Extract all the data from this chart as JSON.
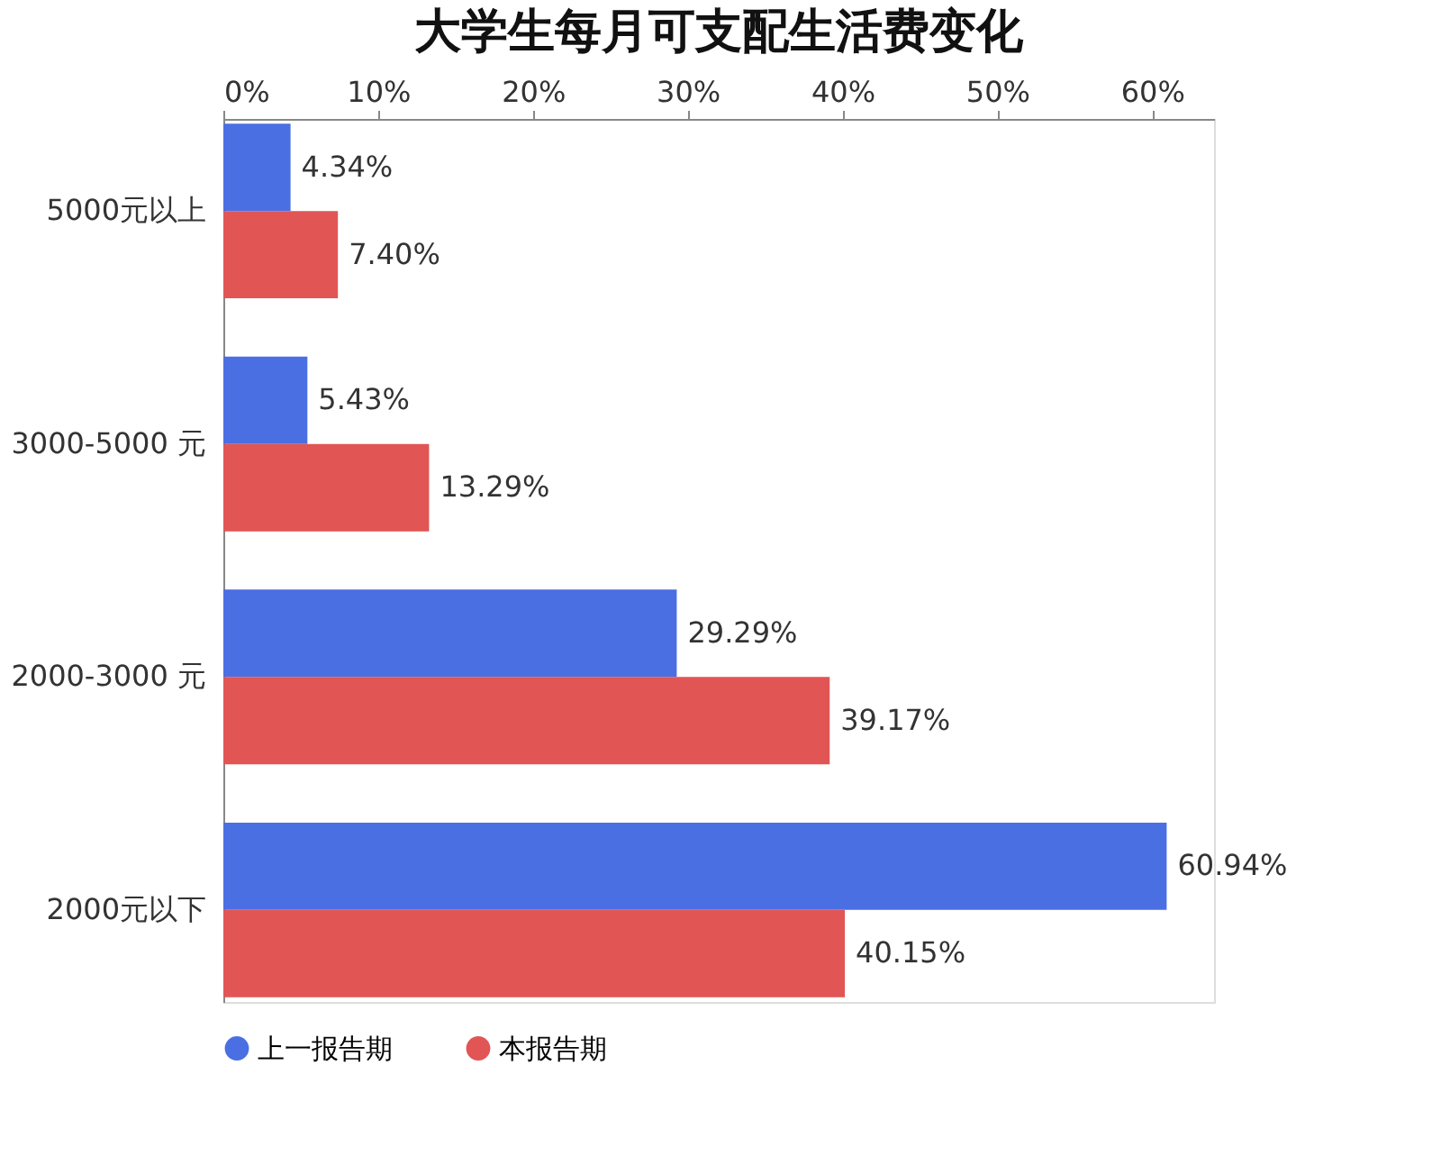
{
  "chart_data": {
    "type": "bar",
    "orientation": "horizontal",
    "title": "大学生每月可支配生活费变化",
    "categories": [
      "5000元以上",
      "3000-5000 元",
      "2000-3000 元",
      "2000元以下"
    ],
    "series": [
      {
        "name": "上一报告期",
        "color": "#4a6fe3",
        "values": [
          4.34,
          5.43,
          29.29,
          60.94
        ],
        "value_labels": [
          "4.34%",
          "5.43%",
          "29.29%",
          "60.94%"
        ]
      },
      {
        "name": "本报告期",
        "color": "#e15554",
        "values": [
          7.4,
          13.29,
          39.17,
          40.15
        ],
        "value_labels": [
          "7.40%",
          "13.29%",
          "39.17%",
          "40.15%"
        ]
      }
    ],
    "xlim": [
      0,
      64
    ],
    "xticks": [
      {
        "value": 0,
        "label": "0%"
      },
      {
        "value": 10,
        "label": "10%"
      },
      {
        "value": 20,
        "label": "20%"
      },
      {
        "value": 30,
        "label": "30%"
      },
      {
        "value": 40,
        "label": "40%"
      },
      {
        "value": 50,
        "label": "50%"
      },
      {
        "value": 60,
        "label": "60%"
      }
    ],
    "legend": "bottom"
  }
}
